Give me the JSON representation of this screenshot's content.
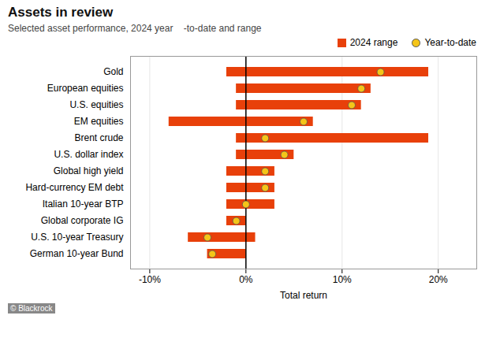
{
  "chart_data": {
    "type": "bar",
    "orientation": "horizontal",
    "title": "Assets in review",
    "subtitle": "Selected asset performance, 2024 year    -to-date and range",
    "xlabel": "Total return",
    "categories": [
      "Gold",
      "European equities",
      "U.S. equities",
      "EM equities",
      "Brent crude",
      "U.S. dollar index",
      "Global high yield",
      "Hard-currency EM debt",
      "Italian 10-year BTP",
      "Global corporate IG",
      "U.S. 10-year Treasury",
      "German 10-year Bund"
    ],
    "series": [
      {
        "name": "2024 range",
        "type": "bar",
        "color": "#E8400A",
        "low": [
          -2,
          -1,
          -1,
          -8,
          -1,
          -1,
          -2,
          -2,
          -2,
          -2,
          -6,
          -4
        ],
        "high": [
          19,
          13,
          12,
          7,
          19,
          5,
          3,
          3,
          3,
          0,
          1,
          0
        ]
      },
      {
        "name": "Year-to-date",
        "type": "scatter",
        "marker": "o",
        "color": "#F5C518",
        "values": [
          14,
          12,
          11,
          6,
          2,
          4,
          2,
          2,
          0,
          -1,
          -4,
          -3.5
        ]
      }
    ],
    "vlines": [
      0
    ],
    "xlim": [
      -12,
      24
    ],
    "xticks": [
      {
        "value": -10,
        "label": "-10%"
      },
      {
        "value": 0,
        "label": "0%"
      },
      {
        "value": 10,
        "label": "10%"
      },
      {
        "value": 20,
        "label": "20%"
      }
    ],
    "grid": true,
    "legend": "lower right",
    "annotations": [
      "© Blackrock"
    ]
  }
}
